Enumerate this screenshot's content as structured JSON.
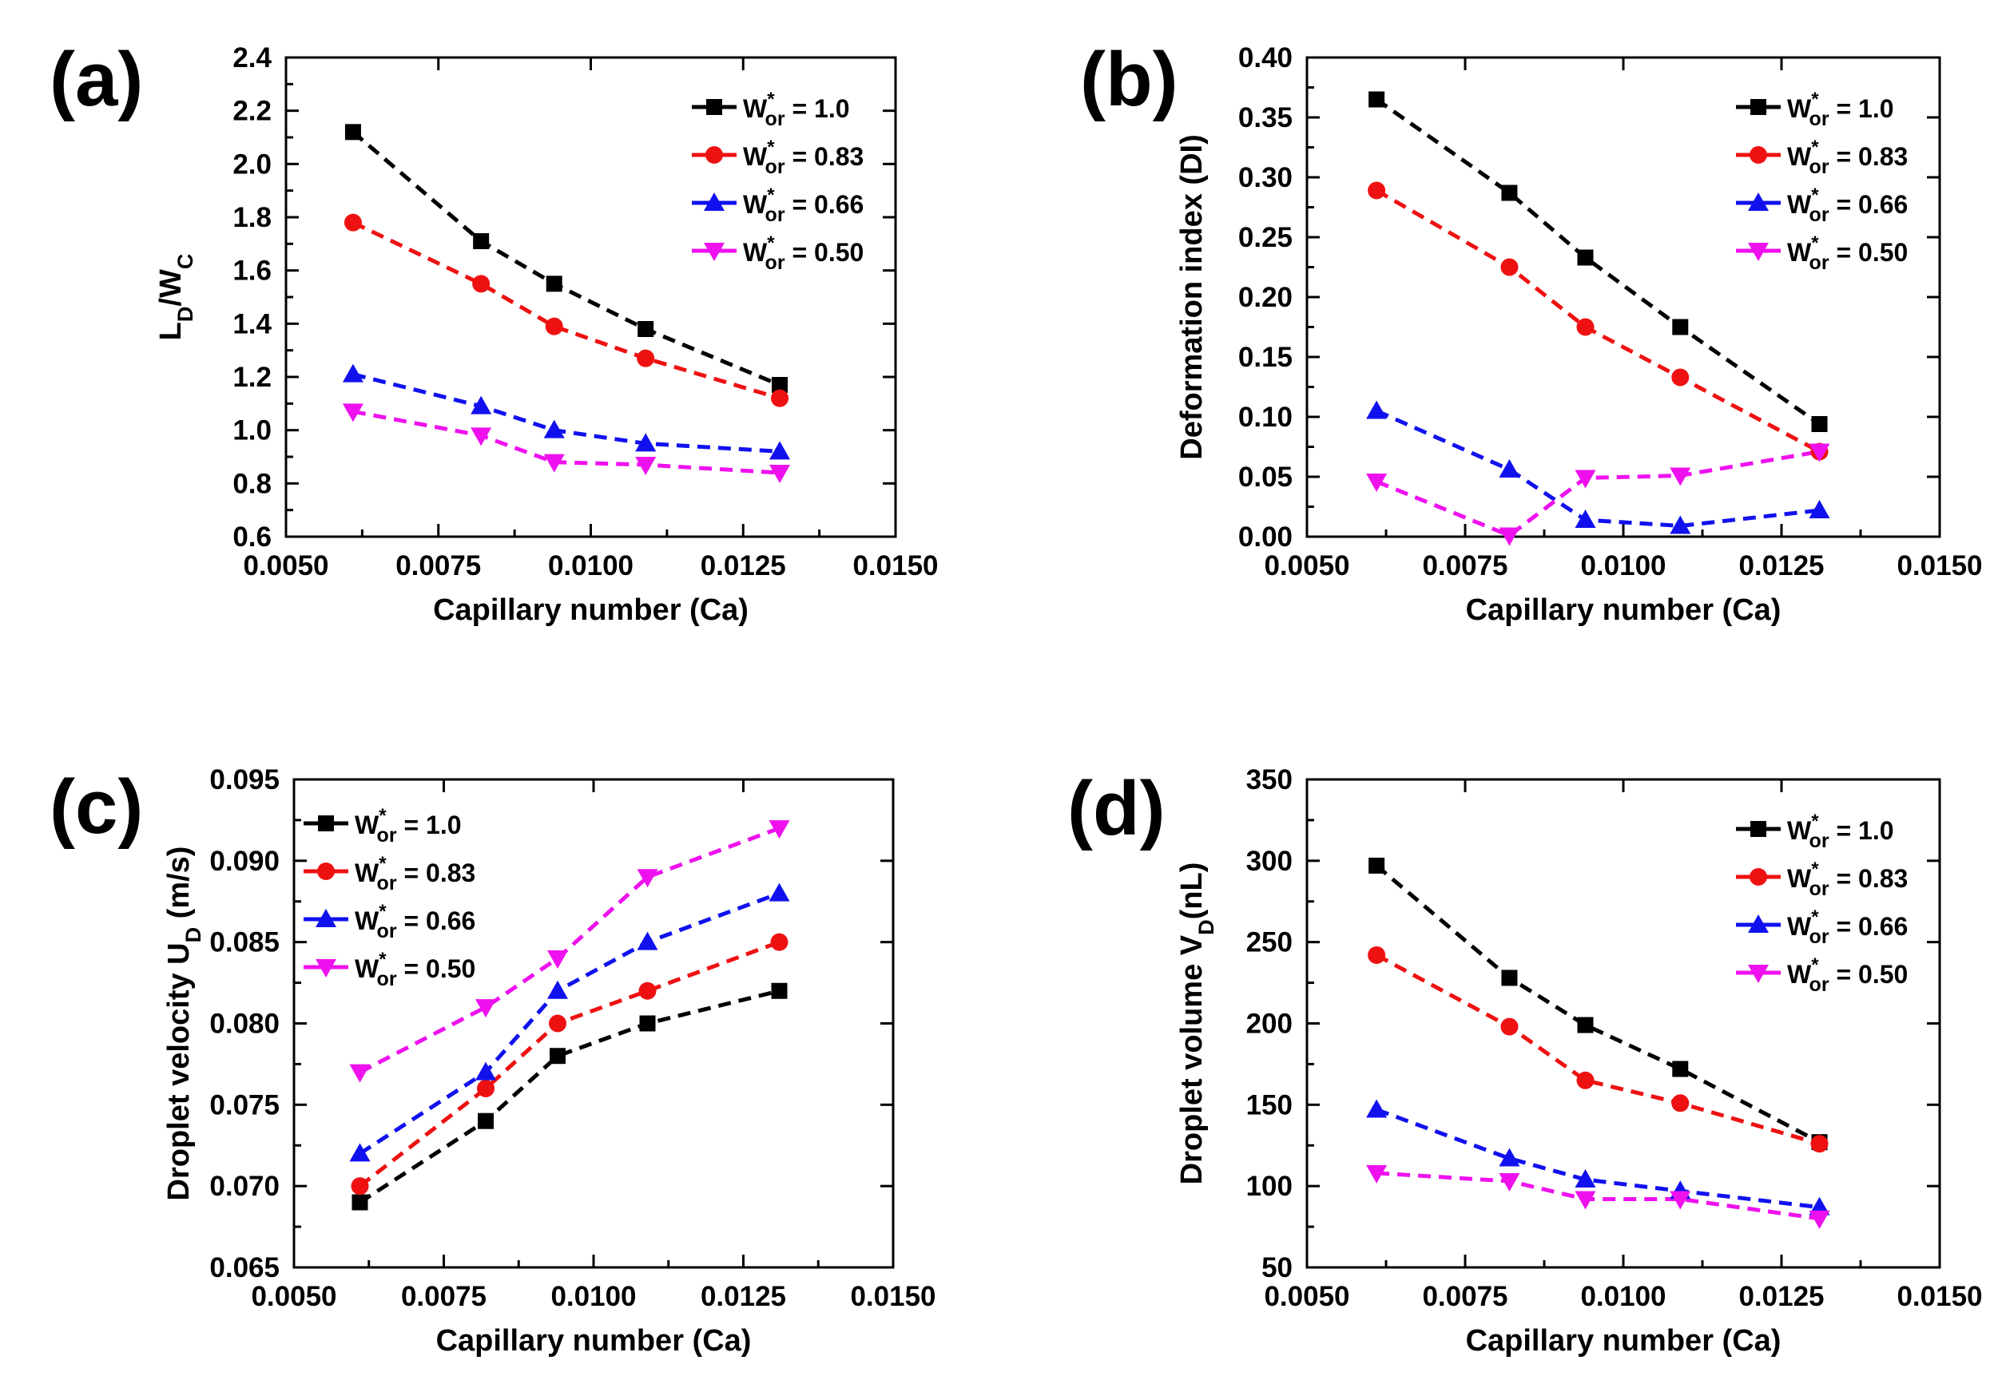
{
  "figure": {
    "background": "#ffffff"
  },
  "series_styles": [
    {
      "color": "#000000",
      "marker": "square"
    },
    {
      "color": "#ee1111",
      "marker": "circle"
    },
    {
      "color": "#1111ee",
      "marker": "triangle-up"
    },
    {
      "color": "#ee11ee",
      "marker": "triangle-down"
    }
  ],
  "chart_data": [
    {
      "panel_label": "(a)",
      "type": "line",
      "xlabel": "Capillary number (Ca)",
      "ylabel": {
        "main": "L",
        "sub1": "D",
        "mid": "/W",
        "sub2": "C"
      },
      "xlim": [
        0.005,
        0.015
      ],
      "ylim": [
        0.6,
        2.4
      ],
      "xticks": [
        "0.0050",
        "0.0075",
        "0.0100",
        "0.0125",
        "0.0150"
      ],
      "yticks": [
        "0.6",
        "0.8",
        "1.0",
        "1.2",
        "1.4",
        "1.6",
        "1.8",
        "2.0",
        "2.2",
        "2.4"
      ],
      "grid": false,
      "legend_position": "top-right",
      "x": [
        0.0061,
        0.0082,
        0.0094,
        0.0109,
        0.0131
      ],
      "series": [
        {
          "legend": {
            "main": "W",
            "sup": "*",
            "sub": "or",
            "value": " = 1.0"
          },
          "values": [
            2.12,
            1.71,
            1.55,
            1.38,
            1.17
          ]
        },
        {
          "legend": {
            "main": "W",
            "sup": "*",
            "sub": "or",
            "value": " = 0.83"
          },
          "values": [
            1.78,
            1.55,
            1.39,
            1.27,
            1.12
          ]
        },
        {
          "legend": {
            "main": "W",
            "sup": "*",
            "sub": "or",
            "value": " = 0.66"
          },
          "values": [
            1.21,
            1.09,
            1.0,
            0.95,
            0.92
          ]
        },
        {
          "legend": {
            "main": "W",
            "sup": "*",
            "sub": "or",
            "value": " = 0.50"
          },
          "values": [
            1.07,
            0.98,
            0.88,
            0.87,
            0.84
          ]
        }
      ]
    },
    {
      "panel_label": "(b)",
      "type": "line",
      "xlabel": "Capillary number (Ca)",
      "ylabel": {
        "main": "Deformation index (DI)"
      },
      "xlim": [
        0.005,
        0.015
      ],
      "ylim": [
        0.0,
        0.4
      ],
      "xticks": [
        "0.0050",
        "0.0075",
        "0.0100",
        "0.0125",
        "0.0150"
      ],
      "yticks": [
        "0.00",
        "0.05",
        "0.10",
        "0.15",
        "0.20",
        "0.25",
        "0.30",
        "0.35",
        "0.40"
      ],
      "grid": false,
      "legend_position": "top-right",
      "x": [
        0.0061,
        0.0082,
        0.0094,
        0.0109,
        0.0131
      ],
      "series": [
        {
          "legend": {
            "main": "W",
            "sup": "*",
            "sub": "or",
            "value": " = 1.0"
          },
          "values": [
            0.365,
            0.287,
            0.233,
            0.175,
            0.094
          ]
        },
        {
          "legend": {
            "main": "W",
            "sup": "*",
            "sub": "or",
            "value": " = 0.83"
          },
          "values": [
            0.289,
            0.225,
            0.175,
            0.133,
            0.071
          ]
        },
        {
          "legend": {
            "main": "W",
            "sup": "*",
            "sub": "or",
            "value": " = 0.66"
          },
          "values": [
            0.105,
            0.056,
            0.014,
            0.009,
            0.022
          ]
        },
        {
          "legend": {
            "main": "W",
            "sup": "*",
            "sub": "or",
            "value": " = 0.50"
          },
          "values": [
            0.046,
            0.001,
            0.049,
            0.051,
            0.071
          ]
        }
      ]
    },
    {
      "panel_label": "(c)",
      "type": "line",
      "xlabel": "Capillary number (Ca)",
      "ylabel": {
        "main": "Droplet velocity U",
        "sub1": "D",
        "mid": " (m/s)"
      },
      "xlim": [
        0.005,
        0.015
      ],
      "ylim": [
        0.065,
        0.095
      ],
      "xticks": [
        "0.0050",
        "0.0075",
        "0.0100",
        "0.0125",
        "0.0150"
      ],
      "yticks": [
        "0.065",
        "0.070",
        "0.075",
        "0.080",
        "0.085",
        "0.090",
        "0.095"
      ],
      "grid": false,
      "legend_position": "top-left",
      "x": [
        0.0061,
        0.0082,
        0.0094,
        0.0109,
        0.0131
      ],
      "series": [
        {
          "legend": {
            "main": "W",
            "sup": "*",
            "sub": "or",
            "value": " = 1.0"
          },
          "values": [
            0.069,
            0.074,
            0.078,
            0.08,
            0.082
          ]
        },
        {
          "legend": {
            "main": "W",
            "sup": "*",
            "sub": "or",
            "value": " = 0.83"
          },
          "values": [
            0.07,
            0.076,
            0.08,
            0.082,
            0.085
          ]
        },
        {
          "legend": {
            "main": "W",
            "sup": "*",
            "sub": "or",
            "value": " = 0.66"
          },
          "values": [
            0.072,
            0.077,
            0.082,
            0.085,
            0.088
          ]
        },
        {
          "legend": {
            "main": "W",
            "sup": "*",
            "sub": "or",
            "value": " = 0.50"
          },
          "values": [
            0.077,
            0.081,
            0.084,
            0.089,
            0.092
          ]
        }
      ]
    },
    {
      "panel_label": "(d)",
      "type": "line",
      "xlabel": "Capillary number (Ca)",
      "ylabel": {
        "main": "Droplet volume V",
        "sub1": "D",
        "mid": "(nL)"
      },
      "xlim": [
        0.005,
        0.015
      ],
      "ylim": [
        50,
        350
      ],
      "xticks": [
        "0.0050",
        "0.0075",
        "0.0100",
        "0.0125",
        "0.0150"
      ],
      "yticks": [
        "50",
        "100",
        "150",
        "200",
        "250",
        "300",
        "350"
      ],
      "grid": false,
      "legend_position": "top-right",
      "x": [
        0.0061,
        0.0082,
        0.0094,
        0.0109,
        0.0131
      ],
      "series": [
        {
          "legend": {
            "main": "W",
            "sup": "*",
            "sub": "or",
            "value": " = 1.0"
          },
          "values": [
            297,
            228,
            199,
            172,
            127
          ]
        },
        {
          "legend": {
            "main": "W",
            "sup": "*",
            "sub": "or",
            "value": " = 0.83"
          },
          "values": [
            242,
            198,
            165,
            151,
            126
          ]
        },
        {
          "legend": {
            "main": "W",
            "sup": "*",
            "sub": "or",
            "value": " = 0.66"
          },
          "values": [
            147,
            117,
            104,
            97,
            87
          ]
        },
        {
          "legend": {
            "main": "W",
            "sup": "*",
            "sub": "or",
            "value": " = 0.50"
          },
          "values": [
            108,
            103,
            92,
            92,
            80
          ]
        }
      ]
    }
  ]
}
